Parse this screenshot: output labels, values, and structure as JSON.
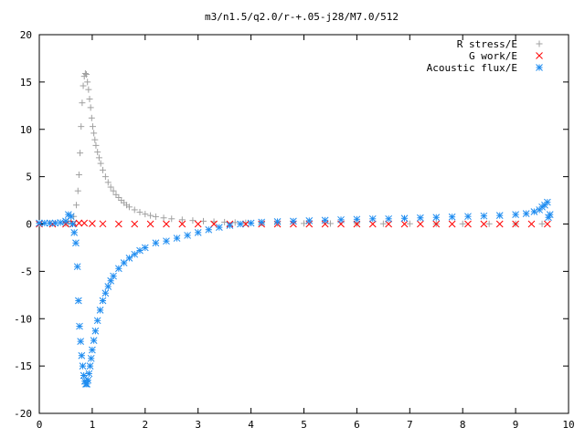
{
  "chart_data": {
    "type": "scatter",
    "title": "m3/n1.5/q2.0/r-+.05-j28/M7.0/512",
    "xlim": [
      0,
      10
    ],
    "ylim": [
      -20,
      20
    ],
    "x_ticks": [
      "0",
      "1",
      "2",
      "3",
      "4",
      "5",
      "6",
      "7",
      "8",
      "9",
      "10"
    ],
    "y_ticks": [
      "-20",
      "-15",
      "-10",
      "-5",
      "0",
      "5",
      "10",
      "15",
      "20"
    ],
    "grid": false,
    "legend_position": "top-right",
    "series": [
      {
        "name": "R stress/E",
        "marker": "plus",
        "color": "#a0a0a0",
        "points": [
          [
            0.5,
            0.05
          ],
          [
            0.55,
            0.1
          ],
          [
            0.6,
            0.3
          ],
          [
            0.65,
            0.8
          ],
          [
            0.7,
            2.0
          ],
          [
            0.73,
            3.5
          ],
          [
            0.75,
            5.2
          ],
          [
            0.77,
            7.5
          ],
          [
            0.79,
            10.3
          ],
          [
            0.81,
            12.8
          ],
          [
            0.83,
            14.6
          ],
          [
            0.85,
            15.6
          ],
          [
            0.87,
            15.9
          ],
          [
            0.89,
            15.8
          ],
          [
            0.91,
            15.0
          ],
          [
            0.93,
            14.2
          ],
          [
            0.95,
            13.2
          ],
          [
            0.97,
            12.3
          ],
          [
            0.99,
            11.2
          ],
          [
            1.01,
            10.3
          ],
          [
            1.03,
            9.6
          ],
          [
            1.05,
            8.9
          ],
          [
            1.07,
            8.3
          ],
          [
            1.1,
            7.6
          ],
          [
            1.13,
            7.0
          ],
          [
            1.16,
            6.4
          ],
          [
            1.2,
            5.7
          ],
          [
            1.25,
            5.0
          ],
          [
            1.3,
            4.4
          ],
          [
            1.35,
            3.9
          ],
          [
            1.4,
            3.5
          ],
          [
            1.45,
            3.1
          ],
          [
            1.5,
            2.8
          ],
          [
            1.55,
            2.5
          ],
          [
            1.6,
            2.25
          ],
          [
            1.65,
            2.0
          ],
          [
            1.7,
            1.8
          ],
          [
            1.8,
            1.5
          ],
          [
            1.9,
            1.25
          ],
          [
            2.0,
            1.05
          ],
          [
            2.1,
            0.9
          ],
          [
            2.2,
            0.78
          ],
          [
            2.35,
            0.65
          ],
          [
            2.5,
            0.55
          ],
          [
            2.7,
            0.45
          ],
          [
            2.9,
            0.37
          ],
          [
            3.1,
            0.3
          ],
          [
            3.3,
            0.25
          ],
          [
            3.5,
            0.2
          ],
          [
            3.7,
            0.16
          ],
          [
            3.9,
            0.13
          ],
          [
            4.2,
            0.1
          ],
          [
            4.5,
            0.08
          ],
          [
            5.0,
            0.06
          ],
          [
            5.5,
            0.05
          ],
          [
            6.0,
            0.04
          ],
          [
            6.5,
            0.03
          ],
          [
            7.0,
            0.03
          ],
          [
            7.5,
            0.02
          ],
          [
            8.0,
            0.02
          ],
          [
            8.5,
            0.02
          ],
          [
            9.0,
            0.02
          ],
          [
            9.5,
            0.02
          ]
        ]
      },
      {
        "name": "G work/E",
        "marker": "cross",
        "color": "#ff0000",
        "points": [
          [
            0.0,
            0.0
          ],
          [
            0.25,
            0.0
          ],
          [
            0.5,
            0.0
          ],
          [
            0.65,
            0.05
          ],
          [
            0.75,
            0.1
          ],
          [
            0.85,
            0.1
          ],
          [
            1.0,
            0.05
          ],
          [
            1.2,
            0.02
          ],
          [
            1.5,
            0.0
          ],
          [
            1.8,
            0.0
          ],
          [
            2.1,
            0.0
          ],
          [
            2.4,
            0.0
          ],
          [
            2.7,
            0.0
          ],
          [
            3.0,
            0.0
          ],
          [
            3.3,
            0.0
          ],
          [
            3.6,
            0.0
          ],
          [
            3.9,
            0.0
          ],
          [
            4.2,
            0.0
          ],
          [
            4.5,
            0.0
          ],
          [
            4.8,
            0.0
          ],
          [
            5.1,
            0.0
          ],
          [
            5.4,
            0.0
          ],
          [
            5.7,
            0.0
          ],
          [
            6.0,
            0.0
          ],
          [
            6.3,
            0.0
          ],
          [
            6.6,
            0.0
          ],
          [
            6.9,
            0.0
          ],
          [
            7.2,
            0.0
          ],
          [
            7.5,
            0.0
          ],
          [
            7.8,
            0.0
          ],
          [
            8.1,
            0.0
          ],
          [
            8.4,
            0.0
          ],
          [
            8.7,
            0.0
          ],
          [
            9.0,
            0.0
          ],
          [
            9.3,
            0.0
          ],
          [
            9.6,
            0.0
          ]
        ]
      },
      {
        "name": "Acoustic flux/E",
        "marker": "star",
        "color": "#1e8cf0",
        "points": [
          [
            0.0,
            0.1
          ],
          [
            0.1,
            0.1
          ],
          [
            0.2,
            0.1
          ],
          [
            0.3,
            0.1
          ],
          [
            0.4,
            0.15
          ],
          [
            0.5,
            0.3
          ],
          [
            0.55,
            1.0
          ],
          [
            0.6,
            0.8
          ],
          [
            0.63,
            0.0
          ],
          [
            0.66,
            -0.9
          ],
          [
            0.69,
            -2.0
          ],
          [
            0.72,
            -4.5
          ],
          [
            0.74,
            -8.1
          ],
          [
            0.76,
            -10.8
          ],
          [
            0.78,
            -12.4
          ],
          [
            0.8,
            -13.9
          ],
          [
            0.82,
            -15.0
          ],
          [
            0.84,
            -16.0
          ],
          [
            0.86,
            -16.6
          ],
          [
            0.88,
            -16.9
          ],
          [
            0.9,
            -16.9
          ],
          [
            0.92,
            -16.5
          ],
          [
            0.94,
            -15.8
          ],
          [
            0.96,
            -15.0
          ],
          [
            0.98,
            -14.2
          ],
          [
            1.0,
            -13.3
          ],
          [
            1.03,
            -12.3
          ],
          [
            1.06,
            -11.3
          ],
          [
            1.1,
            -10.2
          ],
          [
            1.15,
            -9.1
          ],
          [
            1.2,
            -8.1
          ],
          [
            1.25,
            -7.3
          ],
          [
            1.3,
            -6.6
          ],
          [
            1.35,
            -6.0
          ],
          [
            1.4,
            -5.5
          ],
          [
            1.5,
            -4.7
          ],
          [
            1.6,
            -4.1
          ],
          [
            1.7,
            -3.6
          ],
          [
            1.8,
            -3.2
          ],
          [
            1.9,
            -2.8
          ],
          [
            2.0,
            -2.5
          ],
          [
            2.2,
            -2.0
          ],
          [
            2.4,
            -1.8
          ],
          [
            2.6,
            -1.5
          ],
          [
            2.8,
            -1.2
          ],
          [
            3.0,
            -0.9
          ],
          [
            3.2,
            -0.6
          ],
          [
            3.4,
            -0.35
          ],
          [
            3.6,
            -0.15
          ],
          [
            3.8,
            0.0
          ],
          [
            4.0,
            0.1
          ],
          [
            4.2,
            0.2
          ],
          [
            4.5,
            0.25
          ],
          [
            4.8,
            0.3
          ],
          [
            5.1,
            0.35
          ],
          [
            5.4,
            0.4
          ],
          [
            5.7,
            0.45
          ],
          [
            6.0,
            0.5
          ],
          [
            6.3,
            0.55
          ],
          [
            6.6,
            0.55
          ],
          [
            6.9,
            0.6
          ],
          [
            7.2,
            0.65
          ],
          [
            7.5,
            0.7
          ],
          [
            7.8,
            0.75
          ],
          [
            8.1,
            0.8
          ],
          [
            8.4,
            0.85
          ],
          [
            8.7,
            0.9
          ],
          [
            9.0,
            1.0
          ],
          [
            9.2,
            1.1
          ],
          [
            9.35,
            1.3
          ],
          [
            9.45,
            1.5
          ],
          [
            9.5,
            1.8
          ],
          [
            9.55,
            2.0
          ],
          [
            9.6,
            2.3
          ],
          [
            9.65,
            1.0
          ],
          [
            9.62,
            0.7
          ]
        ]
      }
    ]
  }
}
